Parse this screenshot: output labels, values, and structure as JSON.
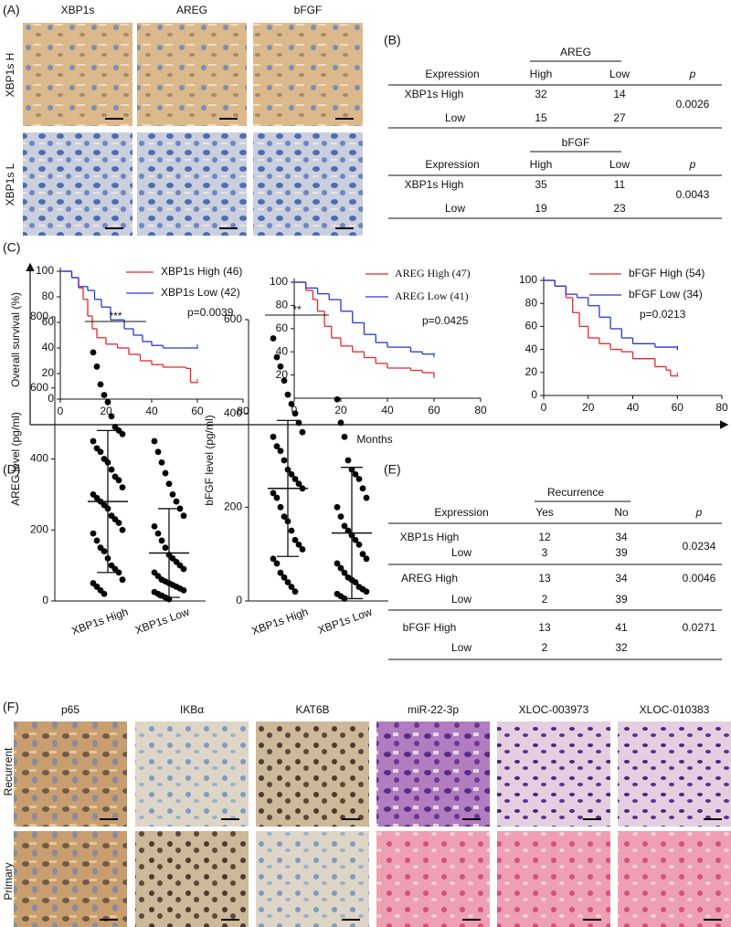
{
  "panels": {
    "A": {
      "label": "(A)",
      "columns": [
        "XBP1s",
        "AREG",
        "bFGF"
      ],
      "rows": [
        "XBP1s H",
        "XBP1s L"
      ]
    },
    "B": {
      "label": "(B)",
      "tables": [
        {
          "group": "AREG",
          "header": [
            "Expression",
            "High",
            "Low",
            "p"
          ],
          "rows": [
            {
              "name": "XBP1s High",
              "cells": [
                32,
                14
              ]
            },
            {
              "name": "Low",
              "cells": [
                15,
                27
              ]
            }
          ],
          "p": 0.0026
        },
        {
          "group": "bFGF",
          "header": [
            "Expression",
            "High",
            "Low",
            "p"
          ],
          "rows": [
            {
              "name": "XBP1s High",
              "cells": [
                35,
                11
              ]
            },
            {
              "name": "Low",
              "cells": [
                19,
                23
              ]
            }
          ],
          "p": 0.0043
        }
      ]
    },
    "C": {
      "label": "(C)",
      "y_label": "Overall survival (%)",
      "x_label": "Months",
      "charts": [
        {
          "type": "line",
          "annotation": "p=0.0039",
          "xlim": [
            0,
            80
          ],
          "xticks": [
            0,
            20,
            40,
            60,
            80
          ],
          "ylim": [
            0,
            100
          ],
          "yticks": [
            0,
            20,
            40,
            60,
            80,
            100
          ],
          "series": [
            {
              "name": "XBP1s High (46)",
              "color": "#e8262b",
              "x": [
                0,
                5,
                8,
                10,
                12,
                14,
                16,
                20,
                25,
                30,
                35,
                40,
                45,
                55,
                57,
                60
              ],
              "values": [
                100,
                95,
                87,
                78,
                65,
                55,
                48,
                43,
                40,
                35,
                30,
                27,
                25,
                24,
                13,
                13
              ]
            },
            {
              "name": "XBP1s Low (42)",
              "color": "#2a35d6",
              "x": [
                0,
                5,
                8,
                12,
                15,
                18,
                22,
                28,
                32,
                36,
                40,
                45,
                60
              ],
              "values": [
                100,
                95,
                88,
                85,
                78,
                72,
                62,
                55,
                50,
                45,
                42,
                40,
                40
              ]
            }
          ]
        },
        {
          "type": "line",
          "annotation": "p=0.0425",
          "xlim": [
            0,
            80
          ],
          "xticks": [
            0,
            20,
            40,
            60,
            80
          ],
          "ylim": [
            0,
            100
          ],
          "yticks": [
            20,
            40,
            60,
            80,
            100
          ],
          "series": [
            {
              "name": "AREG High (47)",
              "color": "#e8262b",
              "x": [
                0,
                5,
                8,
                10,
                13,
                16,
                20,
                25,
                30,
                35,
                40,
                50,
                55,
                60
              ],
              "values": [
                100,
                93,
                85,
                75,
                62,
                52,
                45,
                40,
                35,
                30,
                26,
                24,
                22,
                18
              ]
            },
            {
              "name": "AREG Low (41)",
              "color": "#2a35d6",
              "x": [
                0,
                5,
                10,
                15,
                20,
                25,
                30,
                35,
                40,
                50,
                55,
                60
              ],
              "values": [
                100,
                95,
                90,
                85,
                75,
                65,
                55,
                48,
                44,
                40,
                38,
                36
              ]
            }
          ]
        },
        {
          "type": "line",
          "annotation": "p=0.0213",
          "xlim": [
            0,
            80
          ],
          "xticks": [
            0,
            20,
            40,
            60,
            80
          ],
          "ylim": [
            0,
            100
          ],
          "yticks": [
            0,
            20,
            40,
            60,
            80,
            100
          ],
          "series": [
            {
              "name": "bFGF High (54)",
              "color": "#e8262b",
              "x": [
                0,
                5,
                10,
                13,
                16,
                20,
                25,
                30,
                35,
                40,
                50,
                55,
                57,
                60
              ],
              "values": [
                100,
                95,
                85,
                72,
                60,
                50,
                45,
                40,
                38,
                32,
                25,
                22,
                17,
                17
              ]
            },
            {
              "name": "bFGF Low (34)",
              "color": "#2a35d6",
              "x": [
                0,
                5,
                10,
                15,
                20,
                25,
                30,
                35,
                40,
                50,
                60
              ],
              "values": [
                100,
                95,
                88,
                85,
                78,
                68,
                58,
                50,
                45,
                42,
                40
              ]
            }
          ]
        }
      ]
    },
    "D": {
      "label": "(D)",
      "charts": [
        {
          "type": "scatter",
          "y_label": "AREG level (pg/ml)",
          "significance": "***",
          "ylim": [
            0,
            800
          ],
          "yticks": [
            0,
            200,
            400,
            600,
            800
          ],
          "groups": [
            {
              "name": "XBP1s High",
              "mean": 280,
              "sd": 200,
              "values": [
                700,
                660,
                610,
                580,
                560,
                520,
                490,
                480,
                470,
                450,
                430,
                420,
                400,
                390,
                370,
                350,
                340,
                320,
                300,
                290,
                280,
                270,
                260,
                240,
                230,
                220,
                200,
                190,
                170,
                150,
                140,
                120,
                100,
                90,
                80,
                60,
                50,
                40,
                30,
                20
              ]
            },
            {
              "name": "XBP1s Low",
              "mean": 135,
              "sd": 125,
              "values": [
                450,
                420,
                390,
                360,
                330,
                300,
                280,
                260,
                240,
                210,
                190,
                170,
                150,
                130,
                120,
                110,
                100,
                90,
                80,
                70,
                60,
                55,
                50,
                45,
                40,
                35,
                30,
                25,
                20,
                15,
                10,
                5
              ]
            }
          ]
        },
        {
          "type": "scatter",
          "y_label": "bFGF level (pg/ml)",
          "significance": "**",
          "ylim": [
            0,
            600
          ],
          "yticks": [
            0,
            200,
            400,
            600
          ],
          "groups": [
            {
              "name": "XBP1s High",
              "mean": 240,
              "sd": 145,
              "values": [
                560,
                520,
                500,
                470,
                440,
                420,
                400,
                380,
                360,
                350,
                330,
                320,
                300,
                280,
                270,
                260,
                250,
                240,
                230,
                220,
                200,
                180,
                170,
                150,
                130,
                120,
                110,
                90,
                80,
                60,
                50,
                40,
                30,
                20
              ]
            },
            {
              "name": "XBP1s Low",
              "mean": 145,
              "sd": 140,
              "values": [
                430,
                380,
                350,
                300,
                280,
                270,
                260,
                240,
                220,
                200,
                180,
                160,
                150,
                140,
                130,
                120,
                100,
                90,
                80,
                70,
                60,
                50,
                45,
                40,
                30,
                25,
                20,
                15,
                10,
                5
              ]
            }
          ]
        }
      ]
    },
    "E": {
      "label": "(E)",
      "group": "Recurrence",
      "header": [
        "Expression",
        "Yes",
        "No",
        "p"
      ],
      "blocks": [
        {
          "rows": [
            {
              "name": "XBP1s High",
              "cells": [
                12,
                34
              ]
            },
            {
              "name": "Low",
              "cells": [
                3,
                39
              ]
            }
          ],
          "p": 0.0234
        },
        {
          "rows": [
            {
              "name": "AREG High",
              "cells": [
                13,
                34
              ]
            },
            {
              "name": "Low",
              "cells": [
                2,
                39
              ]
            }
          ],
          "p": 0.0046
        },
        {
          "rows": [
            {
              "name": "bFGF High",
              "cells": [
                13,
                41
              ]
            },
            {
              "name": "Low",
              "cells": [
                2,
                32
              ]
            }
          ],
          "p": 0.0271
        }
      ]
    },
    "F": {
      "label": "(F)",
      "columns": [
        "p65",
        "IKBα",
        "KAT6B",
        "miR-22-3p",
        "XLOC-003973",
        "XLOC-010383"
      ],
      "rows": [
        "Recurrent",
        "Primary"
      ]
    }
  }
}
